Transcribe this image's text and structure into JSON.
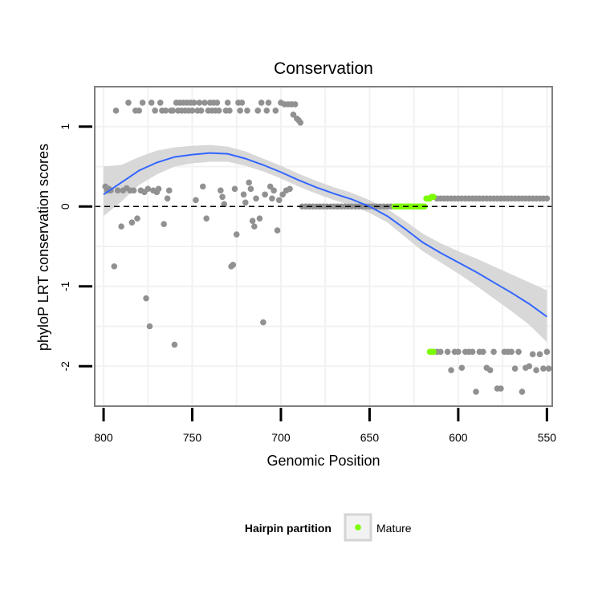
{
  "chart_data": {
    "type": "scatter",
    "title": "Conservation",
    "xlabel": "Genomic Position",
    "ylabel": "phyloP LRT conservation scores",
    "x_reversed": true,
    "xlim": [
      805,
      547
    ],
    "ylim": [
      -2.5,
      1.5
    ],
    "x_ticks": [
      800,
      750,
      700,
      650,
      600,
      550
    ],
    "y_ticks": [
      1,
      0,
      -1,
      -2
    ],
    "grid": true,
    "reference_line": {
      "y": 0,
      "style": "dashed"
    },
    "legend": {
      "title": "Hairpin partition",
      "position": "bottom",
      "entries": [
        "Mature"
      ]
    },
    "colors": {
      "points": "#919191",
      "mature": "#7cfc00",
      "smooth": "#3366ff",
      "ribbon": "#d4d4d4",
      "panel_border": "#7f7f7f",
      "grid": "#f2f2f2"
    },
    "series": [
      {
        "name": "Mature",
        "points": [
          [
            636,
            0
          ],
          [
            635,
            0
          ],
          [
            634,
            0
          ],
          [
            633,
            0
          ],
          [
            632,
            0
          ],
          [
            631,
            0
          ],
          [
            630,
            0
          ],
          [
            629,
            0
          ],
          [
            628,
            0
          ],
          [
            627,
            0
          ],
          [
            626,
            0
          ],
          [
            625,
            0
          ],
          [
            624,
            0
          ],
          [
            623,
            0
          ],
          [
            622,
            0
          ],
          [
            621,
            0
          ],
          [
            620,
            0
          ],
          [
            619,
            0
          ],
          [
            618,
            0.1
          ],
          [
            617,
            0.1
          ],
          [
            616,
            0.1
          ],
          [
            615,
            0.12
          ],
          [
            614,
            0.12
          ],
          [
            616,
            -1.82
          ],
          [
            615,
            -1.82
          ],
          [
            614,
            -1.82
          ]
        ]
      }
    ],
    "points": [
      [
        799,
        0.25
      ],
      [
        798,
        0.2
      ],
      [
        797,
        0.22
      ],
      [
        796,
        0.2
      ],
      [
        794,
        -0.75
      ],
      [
        793,
        1.2
      ],
      [
        792,
        0.2
      ],
      [
        790,
        -0.25
      ],
      [
        789,
        0.2
      ],
      [
        787,
        0.23
      ],
      [
        786,
        1.3
      ],
      [
        785,
        0.2
      ],
      [
        784,
        -0.2
      ],
      [
        783,
        0.2
      ],
      [
        782,
        1.2
      ],
      [
        781,
        -0.15
      ],
      [
        780,
        1.2
      ],
      [
        779,
        0.2
      ],
      [
        778,
        1.3
      ],
      [
        777,
        0.18
      ],
      [
        776,
        -1.15
      ],
      [
        775,
        0.22
      ],
      [
        774,
        -1.5
      ],
      [
        773,
        1.3
      ],
      [
        772,
        0.2
      ],
      [
        771,
        1.2
      ],
      [
        770,
        0.18
      ],
      [
        769,
        0.22
      ],
      [
        768,
        1.3
      ],
      [
        767,
        1.2
      ],
      [
        766,
        -0.22
      ],
      [
        765,
        1.2
      ],
      [
        764,
        0.1
      ],
      [
        763,
        0.2
      ],
      [
        762,
        1.2
      ],
      [
        761,
        1.2
      ],
      [
        760,
        -1.73
      ],
      [
        759,
        1.3
      ],
      [
        758,
        1.2
      ],
      [
        757,
        1.3
      ],
      [
        756,
        1.2
      ],
      [
        755,
        1.3
      ],
      [
        754,
        1.2
      ],
      [
        753,
        1.3
      ],
      [
        752,
        1.2
      ],
      [
        751,
        1.3
      ],
      [
        750,
        1.2
      ],
      [
        749,
        1.3
      ],
      [
        748,
        0.08
      ],
      [
        747,
        1.2
      ],
      [
        746,
        1.3
      ],
      [
        745,
        1.2
      ],
      [
        744,
        0.25
      ],
      [
        743,
        1.3
      ],
      [
        742,
        -0.15
      ],
      [
        741,
        1.2
      ],
      [
        740,
        1.3
      ],
      [
        739,
        1.2
      ],
      [
        738,
        1.3
      ],
      [
        737,
        1.2
      ],
      [
        736,
        1.3
      ],
      [
        735,
        1.2
      ],
      [
        734,
        0.2
      ],
      [
        733,
        0.12
      ],
      [
        732,
        0.03
      ],
      [
        731,
        1.2
      ],
      [
        730,
        1.3
      ],
      [
        729,
        1.2
      ],
      [
        728,
        -0.75
      ],
      [
        727,
        -0.73
      ],
      [
        726,
        0.22
      ],
      [
        725,
        -0.35
      ],
      [
        724,
        1.3
      ],
      [
        723,
        1.2
      ],
      [
        722,
        1.3
      ],
      [
        721,
        0.15
      ],
      [
        720,
        0.05
      ],
      [
        719,
        1.2
      ],
      [
        718,
        0.3
      ],
      [
        717,
        0.22
      ],
      [
        716,
        -0.18
      ],
      [
        715,
        -0.25
      ],
      [
        714,
        0.1
      ],
      [
        713,
        1.2
      ],
      [
        712,
        -0.15
      ],
      [
        711,
        1.3
      ],
      [
        710,
        -1.45
      ],
      [
        709,
        0.15
      ],
      [
        708,
        1.2
      ],
      [
        707,
        1.3
      ],
      [
        706,
        0.25
      ],
      [
        705,
        0.1
      ],
      [
        704,
        0.2
      ],
      [
        703,
        1.2
      ],
      [
        702,
        -0.3
      ],
      [
        701,
        0.08
      ],
      [
        700,
        1.3
      ],
      [
        699,
        0.15
      ],
      [
        698,
        1.28
      ],
      [
        697,
        0.2
      ],
      [
        696,
        1.28
      ],
      [
        695,
        0.22
      ],
      [
        694,
        1.28
      ],
      [
        693,
        1.15
      ],
      [
        692,
        1.28
      ],
      [
        691,
        1.1
      ],
      [
        690,
        1.08
      ],
      [
        689,
        1.05
      ],
      [
        688,
        0
      ],
      [
        686,
        0
      ],
      [
        684,
        0
      ],
      [
        682,
        0
      ],
      [
        680,
        0
      ],
      [
        678,
        0
      ],
      [
        676,
        0
      ],
      [
        674,
        0
      ],
      [
        672,
        0
      ],
      [
        670,
        0
      ],
      [
        668,
        0
      ],
      [
        666,
        0
      ],
      [
        664,
        0
      ],
      [
        662,
        0
      ],
      [
        660,
        0
      ],
      [
        658,
        0
      ],
      [
        656,
        0
      ],
      [
        654,
        0
      ],
      [
        652,
        0
      ],
      [
        650,
        0
      ],
      [
        648,
        0
      ],
      [
        646,
        0
      ],
      [
        644,
        0
      ],
      [
        642,
        0
      ],
      [
        640,
        0
      ],
      [
        638,
        0
      ],
      [
        612,
        0.1
      ],
      [
        610,
        0.1
      ],
      [
        608,
        0.1
      ],
      [
        606,
        0.1
      ],
      [
        604,
        0.1
      ],
      [
        602,
        0.1
      ],
      [
        600,
        0.1
      ],
      [
        598,
        0.1
      ],
      [
        596,
        0.1
      ],
      [
        594,
        0.1
      ],
      [
        592,
        0.1
      ],
      [
        590,
        0.1
      ],
      [
        588,
        0.1
      ],
      [
        586,
        0.1
      ],
      [
        584,
        0.1
      ],
      [
        582,
        0.1
      ],
      [
        580,
        0.1
      ],
      [
        578,
        0.1
      ],
      [
        576,
        0.1
      ],
      [
        574,
        0.1
      ],
      [
        572,
        0.1
      ],
      [
        570,
        0.1
      ],
      [
        568,
        0.1
      ],
      [
        566,
        0.1
      ],
      [
        564,
        0.1
      ],
      [
        562,
        0.1
      ],
      [
        560,
        0.1
      ],
      [
        558,
        0.1
      ],
      [
        556,
        0.1
      ],
      [
        554,
        0.1
      ],
      [
        552,
        0.1
      ],
      [
        550,
        0.1
      ],
      [
        612,
        -1.82
      ],
      [
        610,
        -1.82
      ],
      [
        606,
        -1.82
      ],
      [
        604,
        -2.05
      ],
      [
        602,
        -1.82
      ],
      [
        600,
        -1.82
      ],
      [
        598,
        -2.02
      ],
      [
        596,
        -1.82
      ],
      [
        594,
        -1.82
      ],
      [
        592,
        -1.82
      ],
      [
        590,
        -2.32
      ],
      [
        588,
        -1.82
      ],
      [
        586,
        -1.82
      ],
      [
        584,
        -2.02
      ],
      [
        582,
        -2.05
      ],
      [
        580,
        -1.82
      ],
      [
        578,
        -2.28
      ],
      [
        576,
        -2.28
      ],
      [
        574,
        -1.82
      ],
      [
        572,
        -1.82
      ],
      [
        570,
        -1.82
      ],
      [
        568,
        -2.03
      ],
      [
        566,
        -1.82
      ],
      [
        564,
        -2.32
      ],
      [
        562,
        -2.02
      ],
      [
        560,
        -2.0
      ],
      [
        558,
        -1.85
      ],
      [
        556,
        -2.05
      ],
      [
        554,
        -1.85
      ],
      [
        552,
        -2.03
      ],
      [
        550,
        -1.82
      ],
      [
        549,
        -2.03
      ]
    ],
    "smooth": [
      [
        800,
        0.15
      ],
      [
        790,
        0.3
      ],
      [
        780,
        0.45
      ],
      [
        770,
        0.55
      ],
      [
        760,
        0.62
      ],
      [
        750,
        0.65
      ],
      [
        740,
        0.67
      ],
      [
        730,
        0.66
      ],
      [
        720,
        0.6
      ],
      [
        710,
        0.52
      ],
      [
        700,
        0.43
      ],
      [
        690,
        0.33
      ],
      [
        680,
        0.24
      ],
      [
        670,
        0.16
      ],
      [
        660,
        0.09
      ],
      [
        650,
        0.0
      ],
      [
        640,
        -0.12
      ],
      [
        630,
        -0.28
      ],
      [
        620,
        -0.45
      ],
      [
        610,
        -0.58
      ],
      [
        600,
        -0.7
      ],
      [
        590,
        -0.82
      ],
      [
        580,
        -0.95
      ],
      [
        570,
        -1.08
      ],
      [
        560,
        -1.22
      ],
      [
        550,
        -1.38
      ]
    ],
    "ribbon_upper": [
      [
        800,
        0.5
      ],
      [
        790,
        0.52
      ],
      [
        780,
        0.62
      ],
      [
        770,
        0.7
      ],
      [
        760,
        0.74
      ],
      [
        750,
        0.76
      ],
      [
        740,
        0.77
      ],
      [
        730,
        0.75
      ],
      [
        720,
        0.69
      ],
      [
        710,
        0.6
      ],
      [
        700,
        0.51
      ],
      [
        690,
        0.41
      ],
      [
        680,
        0.32
      ],
      [
        670,
        0.24
      ],
      [
        660,
        0.17
      ],
      [
        650,
        0.08
      ],
      [
        640,
        -0.03
      ],
      [
        630,
        -0.18
      ],
      [
        620,
        -0.34
      ],
      [
        610,
        -0.46
      ],
      [
        600,
        -0.56
      ],
      [
        590,
        -0.65
      ],
      [
        580,
        -0.75
      ],
      [
        570,
        -0.85
      ],
      [
        560,
        -0.95
      ],
      [
        550,
        -1.05
      ]
    ],
    "ribbon_lower": [
      [
        800,
        -0.12
      ],
      [
        790,
        0.06
      ],
      [
        780,
        0.27
      ],
      [
        770,
        0.4
      ],
      [
        760,
        0.5
      ],
      [
        750,
        0.54
      ],
      [
        740,
        0.56
      ],
      [
        730,
        0.56
      ],
      [
        720,
        0.51
      ],
      [
        710,
        0.44
      ],
      [
        700,
        0.35
      ],
      [
        690,
        0.25
      ],
      [
        680,
        0.16
      ],
      [
        670,
        0.08
      ],
      [
        660,
        0.01
      ],
      [
        650,
        -0.08
      ],
      [
        640,
        -0.2
      ],
      [
        630,
        -0.38
      ],
      [
        620,
        -0.56
      ],
      [
        610,
        -0.7
      ],
      [
        600,
        -0.84
      ],
      [
        590,
        -0.99
      ],
      [
        580,
        -1.15
      ],
      [
        570,
        -1.31
      ],
      [
        560,
        -1.48
      ],
      [
        550,
        -1.7
      ]
    ]
  }
}
